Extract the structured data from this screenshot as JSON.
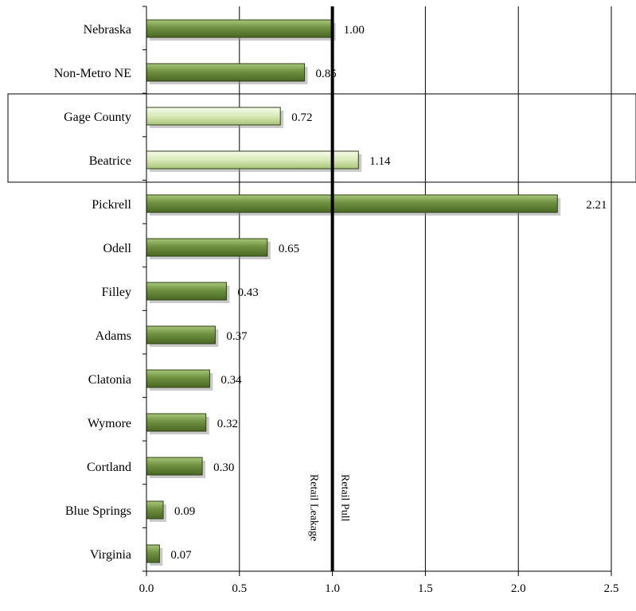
{
  "chart_data": {
    "type": "bar",
    "orientation": "horizontal",
    "categories": [
      "Nebraska",
      "Non-Metro NE",
      "Gage County",
      "Beatrice",
      "Pickrell",
      "Odell",
      "Filley",
      "Adams",
      "Clatonia",
      "Wymore",
      "Cortland",
      "Blue Springs",
      "Virginia"
    ],
    "values": [
      1.0,
      0.85,
      0.72,
      1.14,
      2.21,
      0.65,
      0.43,
      0.37,
      0.34,
      0.32,
      0.3,
      0.09,
      0.07
    ],
    "value_labels": [
      "1.00",
      "0.85",
      "0.72",
      "1.14",
      "2.21",
      "0.65",
      "0.43",
      "0.37",
      "0.34",
      "0.32",
      "0.30",
      "0.09",
      "0.07"
    ],
    "highlighted": [
      "Gage County",
      "Beatrice"
    ],
    "xlim": [
      0,
      2.5
    ],
    "x_ticks": [
      "0.0",
      "0.5",
      "1.0",
      "1.5",
      "2.0",
      "2.5"
    ],
    "grid": "vertical",
    "reference_line": 1.0,
    "annotations": {
      "left_of_line": "Retail Leakage",
      "right_of_line": "Retail Pull"
    },
    "colors": {
      "bar_dark": "#5a7a2e",
      "bar_mid": "#8eb05a",
      "bar_light_top": "#f2f8e4",
      "bar_light_bottom": "#b8d08a",
      "bar_border": "#2f3f14",
      "reference_line": "#000000",
      "grid": "#000000"
    }
  }
}
